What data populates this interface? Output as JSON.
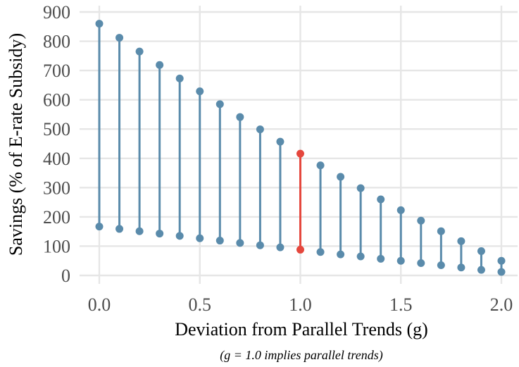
{
  "chart_data": {
    "type": "dumbbell",
    "xlabel": "Deviation from Parallel Trends (g)",
    "ylabel": "Savings (% of E-rate Subsidy)",
    "caption": "(g = 1.0 implies parallel trends)",
    "xlim": [
      -0.1,
      2.1
    ],
    "ylim": [
      0,
      900
    ],
    "x_ticks": [
      0.0,
      0.5,
      1.0,
      1.5,
      2.0
    ],
    "x_tick_labels": [
      "0.0",
      "0.5",
      "1.0",
      "1.5",
      "2.0"
    ],
    "y_ticks": [
      0,
      100,
      200,
      300,
      400,
      500,
      600,
      700,
      800,
      900
    ],
    "y_tick_labels": [
      "0",
      "100",
      "200",
      "300",
      "400",
      "500",
      "600",
      "700",
      "800",
      "900"
    ],
    "grid": true,
    "highlight_g": 1.0,
    "colors": {
      "default": "#5a8bab",
      "highlight": "#e5473d"
    },
    "x": [
      0.0,
      0.1,
      0.2,
      0.3,
      0.4,
      0.5,
      0.6,
      0.7,
      0.8,
      0.9,
      1.0,
      1.1,
      1.2,
      1.3,
      1.4,
      1.5,
      1.6,
      1.7,
      1.8,
      1.9,
      2.0
    ],
    "series": [
      {
        "name": "upper",
        "values": [
          860,
          812,
          765,
          719,
          673,
          629,
          585,
          541,
          499,
          457,
          416,
          376,
          337,
          298,
          260,
          223,
          187,
          151,
          117,
          83,
          50
        ]
      },
      {
        "name": "lower",
        "values": [
          167,
          159,
          151,
          143,
          135,
          127,
          119,
          111,
          103,
          96,
          88,
          80,
          72,
          65,
          57,
          50,
          42,
          35,
          27,
          19,
          12
        ]
      }
    ]
  }
}
